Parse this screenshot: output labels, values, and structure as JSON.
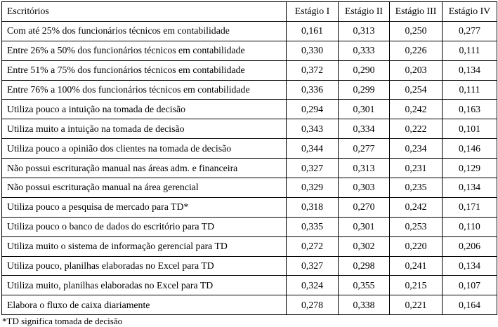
{
  "page": {
    "background": "#ffffff",
    "text_color": "#000000",
    "border_color": "#000000"
  },
  "table": {
    "columns": [
      "Escritórios",
      "Estágio I",
      "Estágio II",
      "Estágio III",
      "Estágio IV"
    ],
    "rows": [
      {
        "label": "Com até 25% dos funcionários técnicos em contabilidade",
        "values": [
          "0,161",
          "0,313",
          "0,250",
          "0,277"
        ]
      },
      {
        "label": "Entre 26% a 50% dos funcionários técnicos em contabilidade",
        "values": [
          "0,330",
          "0,333",
          "0,226",
          "0,111"
        ]
      },
      {
        "label": "Entre 51% a 75% dos funcionários técnicos em contabilidade",
        "values": [
          "0,372",
          "0,290",
          "0,203",
          "0,134"
        ]
      },
      {
        "label": "Entre 76% a 100% dos funcionários técnicos em contabilidade",
        "values": [
          "0,336",
          "0,299",
          "0,254",
          "0,111"
        ]
      },
      {
        "label": "Utiliza pouco a intuição na tomada de decisão",
        "values": [
          "0,294",
          "0,301",
          "0,242",
          "0,163"
        ]
      },
      {
        "label": "Utiliza muito a intuição na tomada de decisão",
        "values": [
          "0,343",
          "0,334",
          "0,222",
          "0,101"
        ]
      },
      {
        "label": "Utiliza pouco a opinião dos clientes na tomada de decisão",
        "values": [
          "0,344",
          "0,277",
          "0,234",
          "0,146"
        ]
      },
      {
        "label": "Não possui escrituração manual nas áreas adm. e financeira",
        "values": [
          "0,327",
          "0,313",
          "0,231",
          "0,129"
        ]
      },
      {
        "label": "Não possui escrituração manual na área gerencial",
        "values": [
          "0,329",
          "0,303",
          "0,235",
          "0,134"
        ]
      },
      {
        "label": "Utiliza pouco a pesquisa de mercado para TD*",
        "values": [
          "0,318",
          "0,270",
          "0,242",
          "0,171"
        ]
      },
      {
        "label": "Utiliza pouco o banco de dados do escritório para TD",
        "values": [
          "0,335",
          "0,301",
          "0,253",
          "0,110"
        ]
      },
      {
        "label": "Utiliza muito o sistema de informação gerencial para TD",
        "values": [
          "0,272",
          "0,302",
          "0,220",
          "0,206"
        ]
      },
      {
        "label": "Utiliza pouco, planilhas elaboradas no Excel para TD",
        "values": [
          "0,327",
          "0,298",
          "0,241",
          "0,134"
        ]
      },
      {
        "label": "Utiliza muito, planilhas elaboradas no Excel para TD",
        "values": [
          "0,324",
          "0,355",
          "0,215",
          "0,107"
        ]
      },
      {
        "label": "Elabora o fluxo de caixa diariamente",
        "values": [
          "0,278",
          "0,338",
          "0,221",
          "0,164"
        ]
      }
    ]
  },
  "footnote": "*TD significa tomada de decisão"
}
